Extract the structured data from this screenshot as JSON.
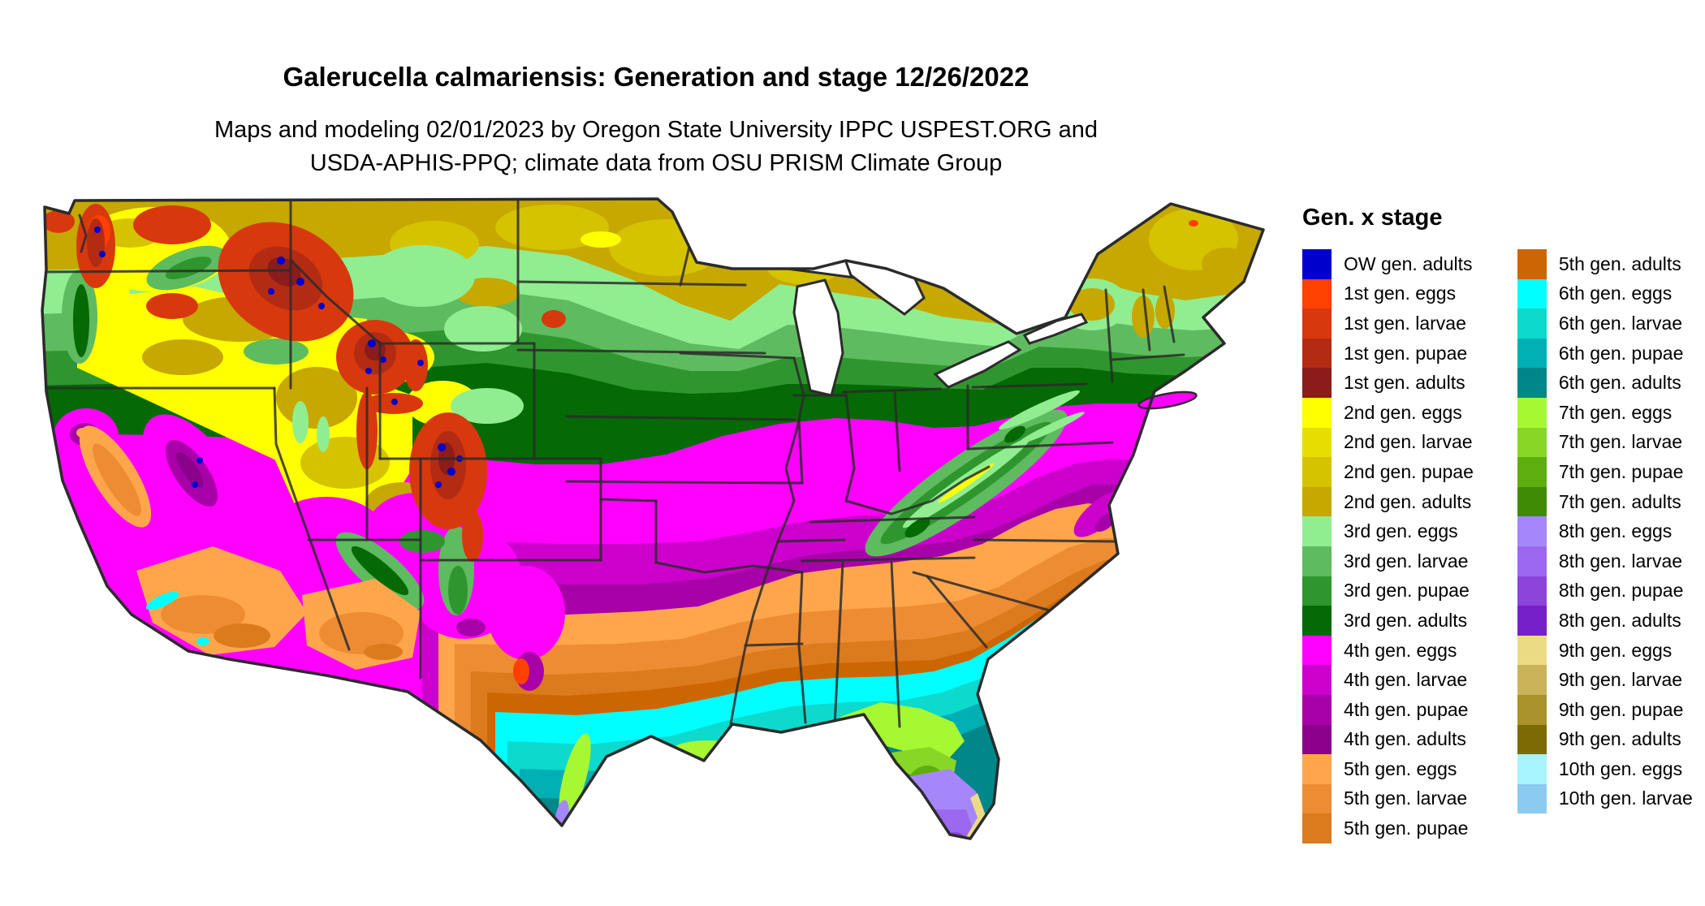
{
  "header": {
    "title": "Galerucella calmariensis: Generation and stage 12/26/2022",
    "subtitle_line1": "Maps and modeling 02/01/2023 by Oregon State University IPPC USPEST.ORG and",
    "subtitle_line2": "USDA-APHIS-PPQ; climate data from OSU PRISM Climate Group"
  },
  "legend": {
    "title": "Gen. x stage",
    "columns": [
      20,
      19
    ],
    "entries": [
      {
        "key": "ow_adults",
        "label": "OW gen. adults",
        "color": "#0000CC"
      },
      {
        "key": "g1_eggs",
        "label": "1st gen. eggs",
        "color": "#FF4000"
      },
      {
        "key": "g1_larvae",
        "label": "1st gen. larvae",
        "color": "#D8380E"
      },
      {
        "key": "g1_pupae",
        "label": "1st gen. pupae",
        "color": "#B32B13"
      },
      {
        "key": "g1_adults",
        "label": "1st gen. adults",
        "color": "#8C1B1B"
      },
      {
        "key": "g2_eggs",
        "label": "2nd gen. eggs",
        "color": "#FFFF00"
      },
      {
        "key": "g2_larvae",
        "label": "2nd gen. larvae",
        "color": "#E6DE00"
      },
      {
        "key": "g2_pupae",
        "label": "2nd gen. pupae",
        "color": "#D5C300"
      },
      {
        "key": "g2_adults",
        "label": "2nd gen. adults",
        "color": "#C6A800"
      },
      {
        "key": "g3_eggs",
        "label": "3rd gen. eggs",
        "color": "#90EE90"
      },
      {
        "key": "g3_larvae",
        "label": "3rd gen. larvae",
        "color": "#5FBB5F"
      },
      {
        "key": "g3_pupae",
        "label": "3rd gen. pupae",
        "color": "#2F962F"
      },
      {
        "key": "g3_adults",
        "label": "3rd gen. adults",
        "color": "#056905"
      },
      {
        "key": "g4_eggs",
        "label": "4th gen. eggs",
        "color": "#FF00FF"
      },
      {
        "key": "g4_larvae",
        "label": "4th gen. larvae",
        "color": "#CC00CC"
      },
      {
        "key": "g4_pupae",
        "label": "4th gen. pupae",
        "color": "#A800A8"
      },
      {
        "key": "g4_adults",
        "label": "4th gen. adults",
        "color": "#8B008B"
      },
      {
        "key": "g5_eggs",
        "label": "5th gen. eggs",
        "color": "#FFA64D"
      },
      {
        "key": "g5_larvae",
        "label": "5th gen. larvae",
        "color": "#EE8C33"
      },
      {
        "key": "g5_pupae",
        "label": "5th gen. pupae",
        "color": "#DC7A1E"
      },
      {
        "key": "g5_adults",
        "label": "5th gen. adults",
        "color": "#CC6600"
      },
      {
        "key": "g6_eggs",
        "label": "6th gen. eggs",
        "color": "#00FFFF"
      },
      {
        "key": "g6_larvae",
        "label": "6th gen. larvae",
        "color": "#0DD9CC"
      },
      {
        "key": "g6_pupae",
        "label": "6th gen. pupae",
        "color": "#00AFB4"
      },
      {
        "key": "g6_adults",
        "label": "6th gen. adults",
        "color": "#008789"
      },
      {
        "key": "g7_eggs",
        "label": "7th gen. eggs",
        "color": "#A6F832"
      },
      {
        "key": "g7_larvae",
        "label": "7th gen. larvae",
        "color": "#88D626"
      },
      {
        "key": "g7_pupae",
        "label": "7th gen. pupae",
        "color": "#5FAE10"
      },
      {
        "key": "g7_adults",
        "label": "7th gen. adults",
        "color": "#3F8B06"
      },
      {
        "key": "g8_eggs",
        "label": "8th gen. eggs",
        "color": "#A687FB"
      },
      {
        "key": "g8_larvae",
        "label": "8th gen. larvae",
        "color": "#9C68EE"
      },
      {
        "key": "g8_pupae",
        "label": "8th gen. pupae",
        "color": "#8C44DB"
      },
      {
        "key": "g8_adults",
        "label": "8th gen. adults",
        "color": "#7620C9"
      },
      {
        "key": "g9_eggs",
        "label": "9th gen. eggs",
        "color": "#ECDB85"
      },
      {
        "key": "g9_larvae",
        "label": "9th gen. larvae",
        "color": "#CBB359"
      },
      {
        "key": "g9_pupae",
        "label": "9th gen. pupae",
        "color": "#A9922B"
      },
      {
        "key": "g9_adults",
        "label": "9th gen. adults",
        "color": "#7E6A04"
      },
      {
        "key": "g10_eggs",
        "label": "10th gen. eggs",
        "color": "#A8F4FE"
      },
      {
        "key": "g10_larvae",
        "label": "10th gen. larvae",
        "color": "#8BCBF2"
      }
    ]
  },
  "map": {
    "water_color": "#FFFFFF",
    "outline_color": "#2B2B2B"
  }
}
